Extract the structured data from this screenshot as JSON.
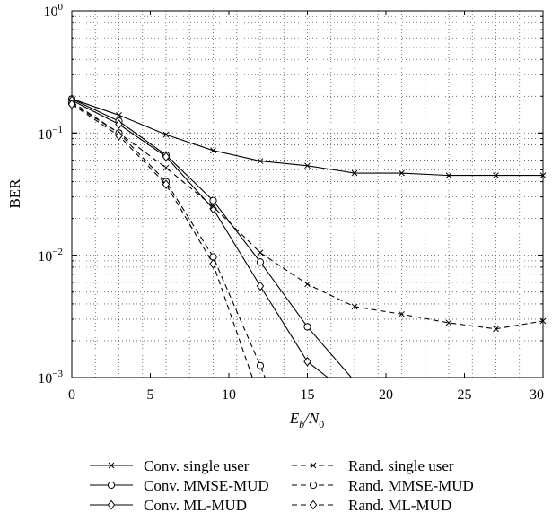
{
  "chart_data": {
    "type": "line",
    "title": "",
    "ylabel": "BER",
    "xlabel": {
      "main": "E",
      "sub1": "b",
      "slash": "/N",
      "sub2": "0"
    },
    "xlim": [
      0,
      30
    ],
    "ylim": [
      0.001,
      1
    ],
    "yscale": "log",
    "grid": true,
    "x_ticks": [
      0,
      5,
      10,
      15,
      20,
      25,
      30
    ],
    "x_tick_labels": [
      "0",
      "5",
      "10",
      "15",
      "20",
      "25",
      "30"
    ],
    "y_ticks": [
      {
        "base": "10",
        "exp": "0",
        "value": 1
      },
      {
        "base": "10",
        "exp": "−1",
        "value": 0.1
      },
      {
        "base": "10",
        "exp": "−2",
        "value": 0.01
      },
      {
        "base": "10",
        "exp": "−3",
        "value": 0.001
      }
    ],
    "legend_position": "bottom",
    "series": [
      {
        "name": "Conv. single user",
        "dash": "solid",
        "marker": "x",
        "points": [
          [
            0,
            0.19
          ],
          [
            3,
            0.14
          ],
          [
            6,
            0.097
          ],
          [
            9,
            0.072
          ],
          [
            12,
            0.059
          ],
          [
            15,
            0.054
          ],
          [
            18,
            0.047
          ],
          [
            21,
            0.047
          ],
          [
            24,
            0.045
          ],
          [
            27,
            0.045
          ],
          [
            30,
            0.045
          ]
        ]
      },
      {
        "name": "Conv. MMSE-MUD",
        "dash": "solid",
        "marker": "circle",
        "points": [
          [
            0,
            0.19
          ],
          [
            3,
            0.125
          ],
          [
            6,
            0.066
          ],
          [
            9,
            0.028
          ],
          [
            12,
            0.0088
          ],
          [
            15,
            0.0026
          ],
          [
            17.8,
            0.001
          ]
        ]
      },
      {
        "name": "Conv. ML-MUD",
        "dash": "solid",
        "marker": "diamond",
        "points": [
          [
            0,
            0.185
          ],
          [
            3,
            0.118
          ],
          [
            6,
            0.064
          ],
          [
            9,
            0.024
          ],
          [
            12,
            0.0056
          ],
          [
            15,
            0.00135
          ],
          [
            16.3,
            0.001
          ]
        ]
      },
      {
        "name": "Rand. single user",
        "dash": "dashed",
        "marker": "x",
        "points": [
          [
            0,
            0.18
          ],
          [
            3,
            0.1
          ],
          [
            6,
            0.052
          ],
          [
            9,
            0.025
          ],
          [
            12,
            0.0105
          ],
          [
            15,
            0.0058
          ],
          [
            18,
            0.0038
          ],
          [
            21,
            0.0033
          ],
          [
            24,
            0.0028
          ],
          [
            27,
            0.0025
          ],
          [
            30,
            0.0029
          ]
        ]
      },
      {
        "name": "Rand. MMSE-MUD",
        "dash": "dashed",
        "marker": "circle",
        "points": [
          [
            0,
            0.175
          ],
          [
            3,
            0.1
          ],
          [
            6,
            0.04
          ],
          [
            9,
            0.0097
          ],
          [
            12,
            0.00125
          ],
          [
            12.3,
            0.001
          ]
        ]
      },
      {
        "name": "Rand. ML-MUD",
        "dash": "dashed",
        "marker": "diamond",
        "points": [
          [
            0,
            0.172
          ],
          [
            3,
            0.095
          ],
          [
            6,
            0.038
          ],
          [
            9,
            0.0085
          ],
          [
            11.5,
            0.001
          ]
        ]
      }
    ]
  }
}
